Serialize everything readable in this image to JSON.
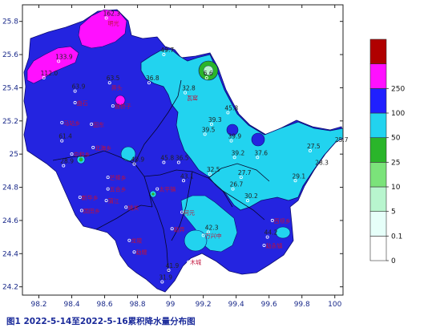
{
  "caption": "图1  2022-5-14至2022-5-16累积降水量分布图",
  "chart_data": {
    "type": "contour-map",
    "xlim": [
      98.1,
      100.05
    ],
    "ylim": [
      24.15,
      25.9
    ],
    "x_ticks": [
      "98.2",
      "98.4",
      "98.6",
      "98.8",
      "99",
      "99.2",
      "99.4",
      "99.6",
      "99.8",
      "100"
    ],
    "y_ticks": [
      "24.2",
      "24.4",
      "24.6",
      "24.8",
      "25",
      "25.2",
      "25.4",
      "25.6",
      "25.8"
    ],
    "legend": {
      "levels": [
        "0",
        "0.1",
        "5",
        "10",
        "25",
        "50",
        "100",
        "250"
      ],
      "colors": [
        "#ffffff",
        "#e6fff9",
        "#b8f5ce",
        "#7be37a",
        "#2ab52a",
        "#22d3ef",
        "#2020ff",
        "#ff10ff",
        "#b00000"
      ]
    },
    "zone_colors": {
      "c25": "#22d3ef",
      "c50": "#2424e0",
      "c100": "#ff10ff",
      "c10": "#2ab52a"
    },
    "stations": [
      {
        "lon": 98.61,
        "lat": 25.82,
        "value": "162.3",
        "name": "明光"
      },
      {
        "lon": 98.32,
        "lat": 25.56,
        "value": "133.9",
        "name": ""
      },
      {
        "lon": 98.23,
        "lat": 25.46,
        "value": "112.0",
        "name": ""
      },
      {
        "lon": 98.42,
        "lat": 25.38,
        "value": "63.9",
        "name": ""
      },
      {
        "lon": 98.63,
        "lat": 25.43,
        "value": "63.5",
        "name": "界头"
      },
      {
        "lon": 98.96,
        "lat": 25.6,
        "value": "49.7",
        "name": ""
      },
      {
        "lon": 98.87,
        "lat": 25.43,
        "value": "36.8",
        "name": ""
      },
      {
        "lon": 99.09,
        "lat": 25.37,
        "value": "32.8",
        "name": "瓦窑"
      },
      {
        "lon": 99.22,
        "lat": 25.46,
        "value": "6.6",
        "name": ""
      },
      {
        "lon": 98.42,
        "lat": 25.31,
        "value": "",
        "name": "曲石"
      },
      {
        "lon": 98.65,
        "lat": 25.29,
        "value": "",
        "name": "猴桥子"
      },
      {
        "lon": 98.34,
        "lat": 25.19,
        "value": "",
        "name": "马站乡"
      },
      {
        "lon": 98.52,
        "lat": 25.18,
        "value": "",
        "name": "固东"
      },
      {
        "lon": 99.35,
        "lat": 25.25,
        "value": "45.8",
        "name": ""
      },
      {
        "lon": 99.25,
        "lat": 25.18,
        "value": "39.3",
        "name": ""
      },
      {
        "lon": 99.21,
        "lat": 25.12,
        "value": "39.5",
        "name": ""
      },
      {
        "lon": 99.37,
        "lat": 25.08,
        "value": "39.9",
        "name": ""
      },
      {
        "lon": 99.39,
        "lat": 24.98,
        "value": "39.2",
        "name": ""
      },
      {
        "lon": 99.53,
        "lat": 24.98,
        "value": "37.6",
        "name": ""
      },
      {
        "lon": 99.85,
        "lat": 25.02,
        "value": "27.5",
        "name": ""
      },
      {
        "lon": 100.02,
        "lat": 25.06,
        "value": "25.7",
        "name": ""
      },
      {
        "lon": 98.34,
        "lat": 25.08,
        "value": "61.4",
        "name": ""
      },
      {
        "lon": 98.4,
        "lat": 25.0,
        "value": "",
        "name": "中和乡"
      },
      {
        "lon": 98.53,
        "lat": 25.04,
        "value": "",
        "name": "北海乡"
      },
      {
        "lon": 98.35,
        "lat": 24.93,
        "value": "28.9",
        "name": ""
      },
      {
        "lon": 98.78,
        "lat": 24.94,
        "value": "40.9",
        "name": ""
      },
      {
        "lon": 98.96,
        "lat": 24.95,
        "value": "45.8",
        "name": ""
      },
      {
        "lon": 99.05,
        "lat": 24.95,
        "value": "36.5",
        "name": ""
      },
      {
        "lon": 99.08,
        "lat": 24.84,
        "value": "43.1",
        "name": ""
      },
      {
        "lon": 99.24,
        "lat": 24.88,
        "value": "32.5",
        "name": ""
      },
      {
        "lon": 99.43,
        "lat": 24.86,
        "value": "27.7",
        "name": ""
      },
      {
        "lon": 99.76,
        "lat": 24.84,
        "value": "29.1",
        "name": ""
      },
      {
        "lon": 99.9,
        "lat": 24.92,
        "value": "28.3",
        "name": ""
      },
      {
        "lon": 99.38,
        "lat": 24.79,
        "value": "26.7",
        "name": ""
      },
      {
        "lon": 99.47,
        "lat": 24.72,
        "value": "30.2",
        "name": ""
      },
      {
        "lon": 98.62,
        "lat": 24.86,
        "value": "",
        "name": "芒棒乡"
      },
      {
        "lon": 98.62,
        "lat": 24.79,
        "value": "",
        "name": "五合乡"
      },
      {
        "lon": 98.92,
        "lat": 24.79,
        "value": "",
        "name": "太平镇"
      },
      {
        "lon": 98.45,
        "lat": 24.74,
        "value": "",
        "name": "新华乡"
      },
      {
        "lon": 98.61,
        "lat": 24.72,
        "value": "",
        "name": "蒲江"
      },
      {
        "lon": 98.46,
        "lat": 24.66,
        "value": "",
        "name": "团田乡"
      },
      {
        "lon": 98.73,
        "lat": 24.68,
        "value": "",
        "name": "姚关"
      },
      {
        "lon": 99.07,
        "lat": 24.65,
        "value": "",
        "name": "何元"
      },
      {
        "lon": 99.62,
        "lat": 24.6,
        "value": "",
        "name": "西坝乡"
      },
      {
        "lon": 99.23,
        "lat": 24.53,
        "value": "42.3",
        "name": ""
      },
      {
        "lon": 99.01,
        "lat": 24.55,
        "value": "",
        "name": "勐弄"
      },
      {
        "lon": 99.2,
        "lat": 24.51,
        "value": "",
        "name": "万兴中"
      },
      {
        "lon": 98.75,
        "lat": 24.48,
        "value": "",
        "name": "龙陵"
      },
      {
        "lon": 98.78,
        "lat": 24.41,
        "value": "",
        "name": "勐糯"
      },
      {
        "lon": 99.11,
        "lat": 24.35,
        "value": "",
        "name": "木城"
      },
      {
        "lon": 99.57,
        "lat": 24.45,
        "value": "",
        "name": "勐永镇"
      },
      {
        "lon": 99.59,
        "lat": 24.5,
        "value": "44.2",
        "name": ""
      },
      {
        "lon": 98.99,
        "lat": 24.3,
        "value": "41.9",
        "name": ""
      },
      {
        "lon": 98.95,
        "lat": 24.23,
        "value": "31.9",
        "name": ""
      }
    ]
  }
}
